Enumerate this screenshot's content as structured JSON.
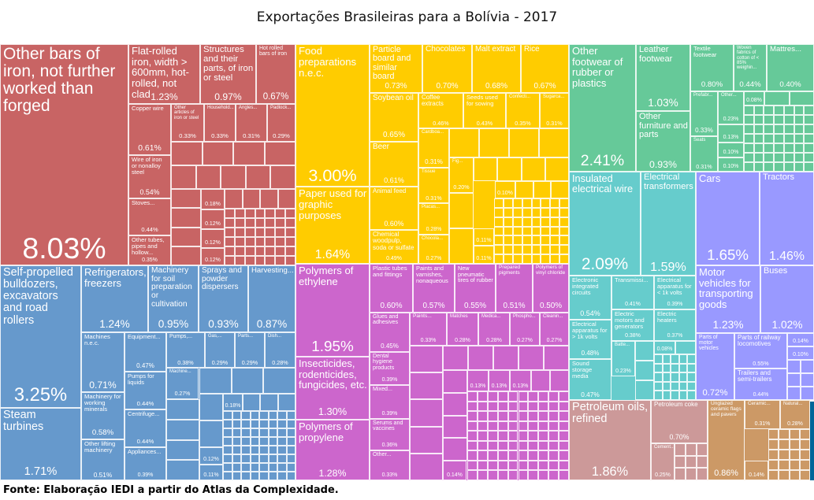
{
  "chart_data": {
    "type": "treemap",
    "title": "Exportações Brasileiras para a Bolívia - 2017",
    "source": "Fonte: Elaboração IEDI a partir do Atlas da Complexidade.",
    "groups": [
      {
        "color": "#C86464",
        "items": [
          {
            "label": "Other bars of iron, not further worked than forged",
            "value": "8.03%"
          },
          {
            "label": "Flat-rolled iron, width > 600mm, hot-rolled, not clad",
            "value": "1.23%"
          },
          {
            "label": "Structures and their parts, of iron or steel",
            "value": "0.97%"
          },
          {
            "label": "Hot rolled bars of iron",
            "value": "0.67%"
          },
          {
            "label": "Copper wire",
            "value": "0.61%"
          },
          {
            "label": "Wire of iron or nonalloy steel",
            "value": "0.54%"
          },
          {
            "label": "Stoves...",
            "value": "0.44%"
          },
          {
            "label": "Other tubes, pipes and hollow...",
            "value": "0.35%"
          },
          {
            "label": "Other articles of iron or steel",
            "value": "0.33%"
          },
          {
            "label": "Household...",
            "value": "0.33%"
          },
          {
            "label": "Angles...",
            "value": "0.31%"
          },
          {
            "label": "Padlock...",
            "value": "0.29%"
          },
          {
            "label": "",
            "value": "0.18%"
          },
          {
            "label": "",
            "value": "0.12%"
          },
          {
            "label": "",
            "value": "0.12%"
          },
          {
            "label": "",
            "value": "0.12%"
          }
        ]
      },
      {
        "color": "#FFCC00",
        "items": [
          {
            "label": "Food preparations n.e.c.",
            "value": "3.00%"
          },
          {
            "label": "Paper used for graphic purposes",
            "value": "1.64%"
          },
          {
            "label": "Particle board and similar board",
            "value": "0.73%"
          },
          {
            "label": "Chocolates",
            "value": "0.70%"
          },
          {
            "label": "Malt extract",
            "value": "0.68%"
          },
          {
            "label": "Rice",
            "value": "0.67%"
          },
          {
            "label": "Soybean oil",
            "value": "0.65%"
          },
          {
            "label": "Beer",
            "value": "0.61%"
          },
          {
            "label": "Animal feed",
            "value": "0.60%"
          },
          {
            "label": "Chemical woodpulp, soda or sulfate",
            "value": "0.49%"
          },
          {
            "label": "Coffee extracts",
            "value": "0.46%"
          },
          {
            "label": "Seeds used for sowing",
            "value": "0.43%"
          },
          {
            "label": "Confecti...",
            "value": "0.35%"
          },
          {
            "label": "Sugarca...",
            "value": "0.31%"
          },
          {
            "label": "Cardboa...",
            "value": "0.31%"
          },
          {
            "label": "Tissue",
            "value": "0.31%"
          },
          {
            "label": "Placas...",
            "value": "0.28%"
          },
          {
            "label": "Chocola...",
            "value": "0.27%"
          },
          {
            "label": "Fig...",
            "value": "0.20%"
          },
          {
            "label": "",
            "value": "0.10%"
          },
          {
            "label": "",
            "value": "0.11%"
          },
          {
            "label": "",
            "value": "0.11%"
          }
        ]
      },
      {
        "color": "#66C999",
        "items": [
          {
            "label": "Other footwear of rubber or plastics",
            "value": "2.41%"
          },
          {
            "label": "Leather footwear",
            "value": "1.03%"
          },
          {
            "label": "Other furniture and parts",
            "value": "0.93%"
          },
          {
            "label": "Textile footwear",
            "value": "0.80%"
          },
          {
            "label": "Woven fabrics of cotton of < 85% weighin...",
            "value": "0.44%"
          },
          {
            "label": "Mattres...",
            "value": "0.40%"
          },
          {
            "label": "Prefabr...",
            "value": "0.33%"
          },
          {
            "label": "Seats",
            "value": "0.31%"
          },
          {
            "label": "Other...",
            "value": "0.23%"
          },
          {
            "label": "",
            "value": "0.13%"
          },
          {
            "label": "",
            "value": "0.10%"
          },
          {
            "label": "",
            "value": "0.10%"
          },
          {
            "label": "",
            "value": "0.08%"
          }
        ]
      },
      {
        "color": "#6699CC",
        "items": [
          {
            "label": "Self-propelled bulldozers, excavators and road rollers",
            "value": "3.25%"
          },
          {
            "label": "Steam turbines",
            "value": "1.71%"
          },
          {
            "label": "Refrigerators, freezers",
            "value": "1.24%"
          },
          {
            "label": "Machinery for soil preparation or cultivation",
            "value": "0.95%"
          },
          {
            "label": "Sprays and powder dispersers",
            "value": "0.93%"
          },
          {
            "label": "Harvesting...",
            "value": "0.87%"
          },
          {
            "label": "Machines n.e.c.",
            "value": "0.71%"
          },
          {
            "label": "Machinery for working minerals",
            "value": "0.58%"
          },
          {
            "label": "Other lifting machinery",
            "value": "0.51%"
          },
          {
            "label": "Equipment...",
            "value": "0.47%"
          },
          {
            "label": "Pumps for liquids",
            "value": "0.44%"
          },
          {
            "label": "Centrifuge...",
            "value": "0.44%"
          },
          {
            "label": "Appliances...",
            "value": "0.39%"
          },
          {
            "label": "Pumps,...",
            "value": "0.38%"
          },
          {
            "label": "Gas,...",
            "value": "0.29%"
          },
          {
            "label": "Parts...",
            "value": "0.29%"
          },
          {
            "label": "Dish...",
            "value": "0.28%"
          },
          {
            "label": "Machine...",
            "value": "0.27%"
          },
          {
            "label": "",
            "value": "0.18%"
          },
          {
            "label": "",
            "value": "0.12%"
          },
          {
            "label": "",
            "value": "0.11%"
          }
        ]
      },
      {
        "color": "#CC66CC",
        "items": [
          {
            "label": "Polymers of ethylene",
            "value": "1.95%"
          },
          {
            "label": "Insecticides, rodenticides, fungicides, etc.",
            "value": "1.30%"
          },
          {
            "label": "Polymers of propylene",
            "value": "1.28%"
          },
          {
            "label": "Plastic tubes and fittings",
            "value": "0.60%"
          },
          {
            "label": "Paints and varnishes, nonaqueous",
            "value": "0.57%"
          },
          {
            "label": "New pneumatic tires of rubber",
            "value": "0.55%"
          },
          {
            "label": "Prepared pigments",
            "value": "0.51%"
          },
          {
            "label": "Polymers of vinyl chloride",
            "value": "0.50%"
          },
          {
            "label": "Glues and adhesives",
            "value": "0.45%"
          },
          {
            "label": "Dental hygiene products",
            "value": "0.39%"
          },
          {
            "label": "Mixed...",
            "value": "0.39%"
          },
          {
            "label": "Serums and vaccines",
            "value": "0.36%"
          },
          {
            "label": "Other...",
            "value": "0.33%"
          },
          {
            "label": "Paints...",
            "value": "0.33%"
          },
          {
            "label": "Matches",
            "value": "0.28%"
          },
          {
            "label": "Medica...",
            "value": "0.28%"
          },
          {
            "label": "Phospho...",
            "value": "0.27%"
          },
          {
            "label": "Cleanin...",
            "value": "0.27%"
          },
          {
            "label": "",
            "value": "0.13%"
          },
          {
            "label": "",
            "value": "0.13%"
          },
          {
            "label": "",
            "value": "0.13%"
          },
          {
            "label": "",
            "value": "0.14%"
          }
        ]
      },
      {
        "color": "#66CCCC",
        "items": [
          {
            "label": "Insulated electrical wire",
            "value": "2.09%"
          },
          {
            "label": "Electrical transformers",
            "value": "1.59%"
          },
          {
            "label": "Electronic integrated circuits",
            "value": "0.54%"
          },
          {
            "label": "Electrical apparatus for > 1k volts",
            "value": "0.48%"
          },
          {
            "label": "Sound storage media",
            "value": "0.47%"
          },
          {
            "label": "Transmissi...",
            "value": "0.41%"
          },
          {
            "label": "Electrical apparatus for < 1k volts",
            "value": "0.39%"
          },
          {
            "label": "Electric motors and generators",
            "value": "0.38%"
          },
          {
            "label": "Electric heaters",
            "value": "0.37%"
          },
          {
            "label": "Batte...",
            "value": "0.23%"
          },
          {
            "label": "",
            "value": "0.08%"
          }
        ]
      },
      {
        "color": "#9999FF",
        "items": [
          {
            "label": "Cars",
            "value": "1.65%"
          },
          {
            "label": "Tractors",
            "value": "1.46%"
          },
          {
            "label": "Motor vehicles for transporting goods",
            "value": "1.23%"
          },
          {
            "label": "Buses",
            "value": "1.02%"
          },
          {
            "label": "Parts of motor vehicles",
            "value": "0.72%"
          },
          {
            "label": "Parts of railway locomotives",
            "value": "0.55%"
          },
          {
            "label": "Trailers and semi-trailers",
            "value": "0.44%"
          },
          {
            "label": "",
            "value": "0.14%"
          },
          {
            "label": "",
            "value": "0.10%"
          }
        ]
      },
      {
        "color": "#CC9999",
        "items": [
          {
            "label": "Petroleum oils, refined",
            "value": "1.86%"
          },
          {
            "label": "Petroleum coke",
            "value": "0.70%"
          },
          {
            "label": "Cement...",
            "value": "0.25%"
          }
        ]
      },
      {
        "color": "#CC9966",
        "items": [
          {
            "label": "Unglazed ceramic flags and pavers",
            "value": "0.86%"
          },
          {
            "label": "Ceramic...",
            "value": "0.31%"
          },
          {
            "label": "Natural...",
            "value": "0.28%"
          },
          {
            "label": "",
            "value": "0.14%"
          }
        ]
      },
      {
        "color": "#006699",
        "items": []
      }
    ]
  }
}
